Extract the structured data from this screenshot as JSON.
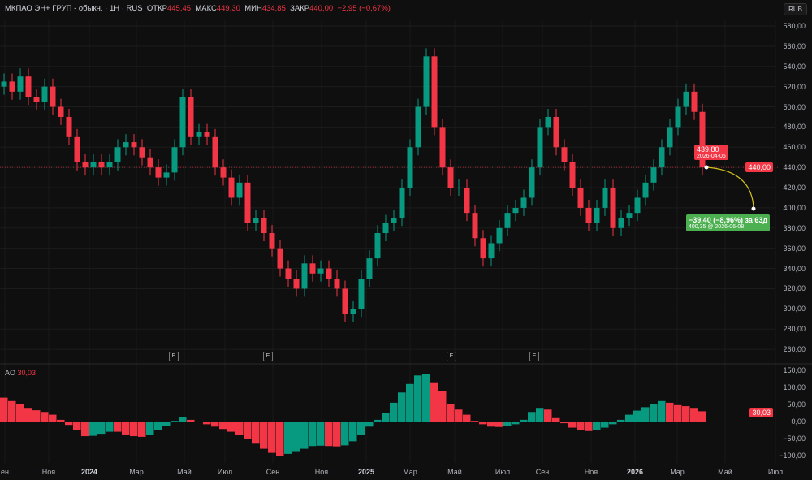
{
  "header": {
    "symbol": "МКПАО ЭН+ ГРУП - обыкн.",
    "interval": "1Н",
    "exchange": "RUS",
    "open_label": "ОТКР",
    "open": "445,45",
    "high_label": "МАКС",
    "high": "449,30",
    "low_label": "МИН",
    "low": "434,85",
    "close_label": "ЗАКР",
    "close": "440,00",
    "change": "−2,95 (−0,67%)"
  },
  "currency_button": "RUB",
  "colors": {
    "up": "#089981",
    "down": "#f23645",
    "projection": "#4caf50",
    "projection_line": "#d4c21a"
  },
  "chart_data": [
    {
      "type": "candlestick",
      "ylim": [
        260,
        580
      ],
      "y_ticks": [
        "580,00",
        "560,00",
        "540,00",
        "520,00",
        "500,00",
        "480,00",
        "460,00",
        "440,00",
        "420,00",
        "400,00",
        "380,00",
        "360,00",
        "340,00",
        "320,00",
        "300,00",
        "280,00",
        "260,00"
      ],
      "close": [
        525,
        515,
        530,
        510,
        505,
        520,
        500,
        490,
        470,
        445,
        440,
        445,
        440,
        445,
        460,
        465,
        460,
        450,
        440,
        430,
        435,
        460,
        510,
        470,
        475,
        470,
        440,
        430,
        410,
        425,
        385,
        390,
        375,
        360,
        340,
        330,
        320,
        345,
        335,
        340,
        330,
        320,
        295,
        300,
        330,
        350,
        375,
        385,
        390,
        420,
        460,
        500,
        550,
        480,
        440,
        420,
        420,
        395,
        370,
        350,
        365,
        380,
        395,
        400,
        410,
        440,
        480,
        490,
        460,
        445,
        420,
        400,
        385,
        400,
        420,
        380,
        390,
        395,
        410,
        425,
        440,
        460,
        480,
        500,
        515,
        495,
        440
      ],
      "last_price": "440,00",
      "earnings_marker": "E",
      "tooltip": {
        "price": "439,80",
        "date": "2026-04-06"
      },
      "projection": {
        "change": "−39,40 (−8,96%) за 63д",
        "target": "400,35 @ 2026-06-08"
      }
    },
    {
      "type": "bar",
      "name": "AO",
      "last_value": "30,03",
      "ylim": [
        -120,
        160
      ],
      "y_ticks": [
        "150,00",
        "100,00",
        "50,00",
        "0,00",
        "−50,00",
        "−100,00"
      ],
      "values": [
        70,
        60,
        50,
        40,
        33,
        28,
        20,
        5,
        -10,
        -25,
        -43,
        -42,
        -36,
        -30,
        -30,
        -38,
        -43,
        -45,
        -40,
        -25,
        -12,
        2,
        13,
        5,
        -2,
        -8,
        -15,
        -22,
        -30,
        -40,
        -52,
        -65,
        -80,
        -92,
        -100,
        -95,
        -87,
        -80,
        -72,
        -71,
        -72,
        -73,
        -70,
        -58,
        -40,
        -15,
        5,
        25,
        55,
        85,
        110,
        135,
        140,
        115,
        90,
        50,
        35,
        20,
        2,
        -8,
        -15,
        -16,
        -12,
        -8,
        5,
        28,
        40,
        35,
        10,
        -5,
        -18,
        -26,
        -28,
        -25,
        -18,
        -8,
        5,
        20,
        32,
        42,
        52,
        60,
        55,
        48,
        45,
        40,
        30
      ]
    }
  ],
  "x_axis": [
    "ен",
    "Ноя",
    "2024",
    "Мар",
    "Май",
    "Июл",
    "Сен",
    "Ноя",
    "2025",
    "Мар",
    "Май",
    "Июл",
    "Сен",
    "Ноя",
    "2026",
    "Мар",
    "Май",
    "Июл"
  ]
}
